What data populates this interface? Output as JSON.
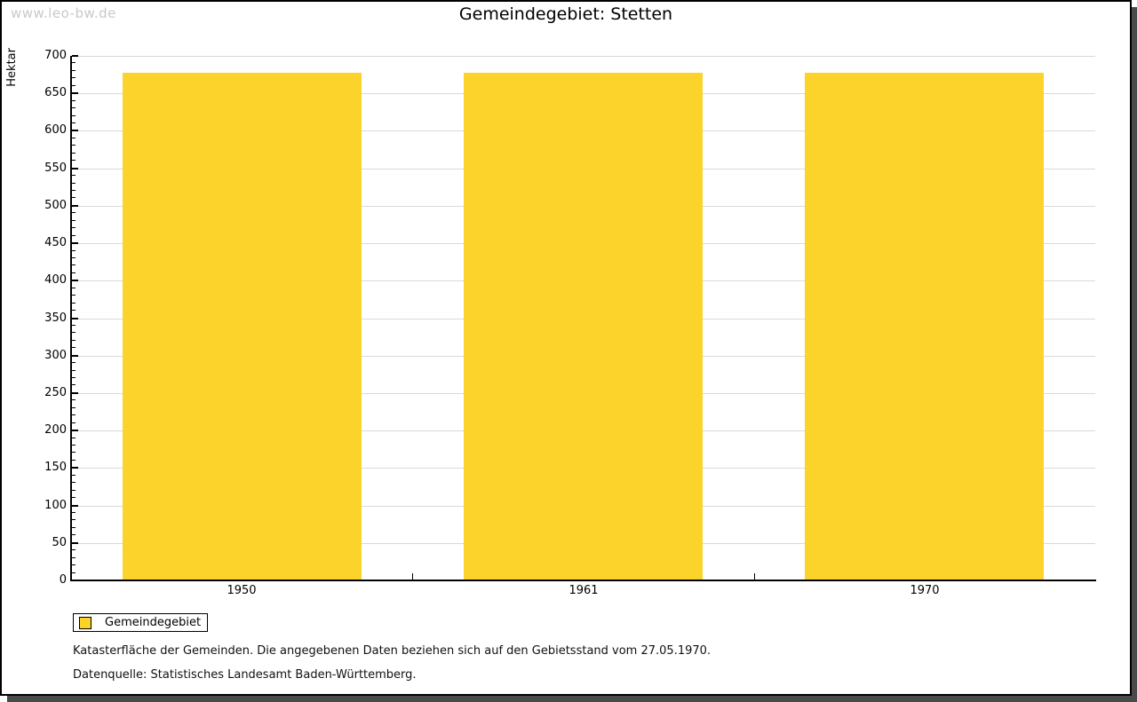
{
  "watermark": "www.leo-bw.de",
  "chart_data": {
    "type": "bar",
    "title": "Gemeindegebiet: Stetten",
    "categories": [
      "1950",
      "1961",
      "1970"
    ],
    "series": [
      {
        "name": "Gemeindegebiet",
        "values": [
          678,
          678,
          678
        ],
        "color": "#fcd32b"
      }
    ],
    "xlabel": "",
    "ylabel": "Hektar",
    "ylim": [
      0,
      700
    ],
    "ytick_major": 50,
    "ytick_minor": 10,
    "grid": true,
    "legend_position": "bottom-left"
  },
  "legend": {
    "label": "Gemeindegebiet",
    "swatch_color": "#fcd32b"
  },
  "footnotes": {
    "line1": "Katasterfläche der Gemeinden. Die angegebenen Daten beziehen sich auf den Gebietsstand vom 27.05.1970.",
    "line2": "Datenquelle: Statistisches Landesamt Baden-Württemberg."
  },
  "colors": {
    "bar": "#fcd32b",
    "grid": "#d9d9d9",
    "axis": "#000000",
    "frame_shadow": "#4a4a4a",
    "watermark": "#c9c9c9"
  }
}
